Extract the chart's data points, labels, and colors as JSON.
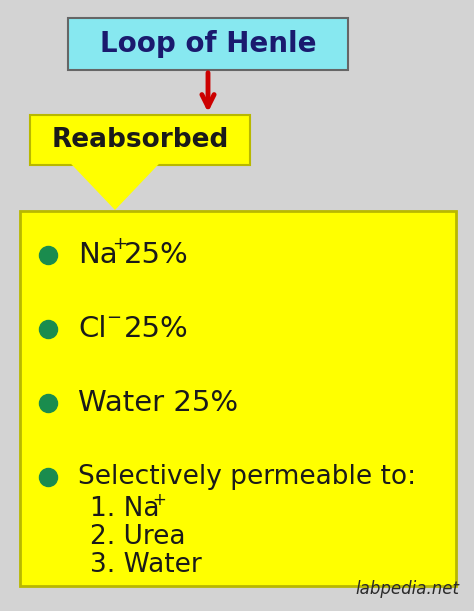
{
  "bg_color": "#d3d3d3",
  "title_box_color": "#87e8f0",
  "title_text": "Loop of Henle",
  "title_text_color": "#1a1a6e",
  "reabsorbed_box_color": "#ffff00",
  "reabsorbed_text": "Reabsorbed",
  "reabsorbed_text_color": "#1a1a1a",
  "arrow_color": "#cc0000",
  "main_box_color": "#ffff00",
  "main_box_border": "#b8b800",
  "bullet_color": "#1a8c4e",
  "watermark": "labpedia.net",
  "watermark_color": "#2a2a2a",
  "fig_width": 4.74,
  "fig_height": 6.11,
  "dpi": 100
}
